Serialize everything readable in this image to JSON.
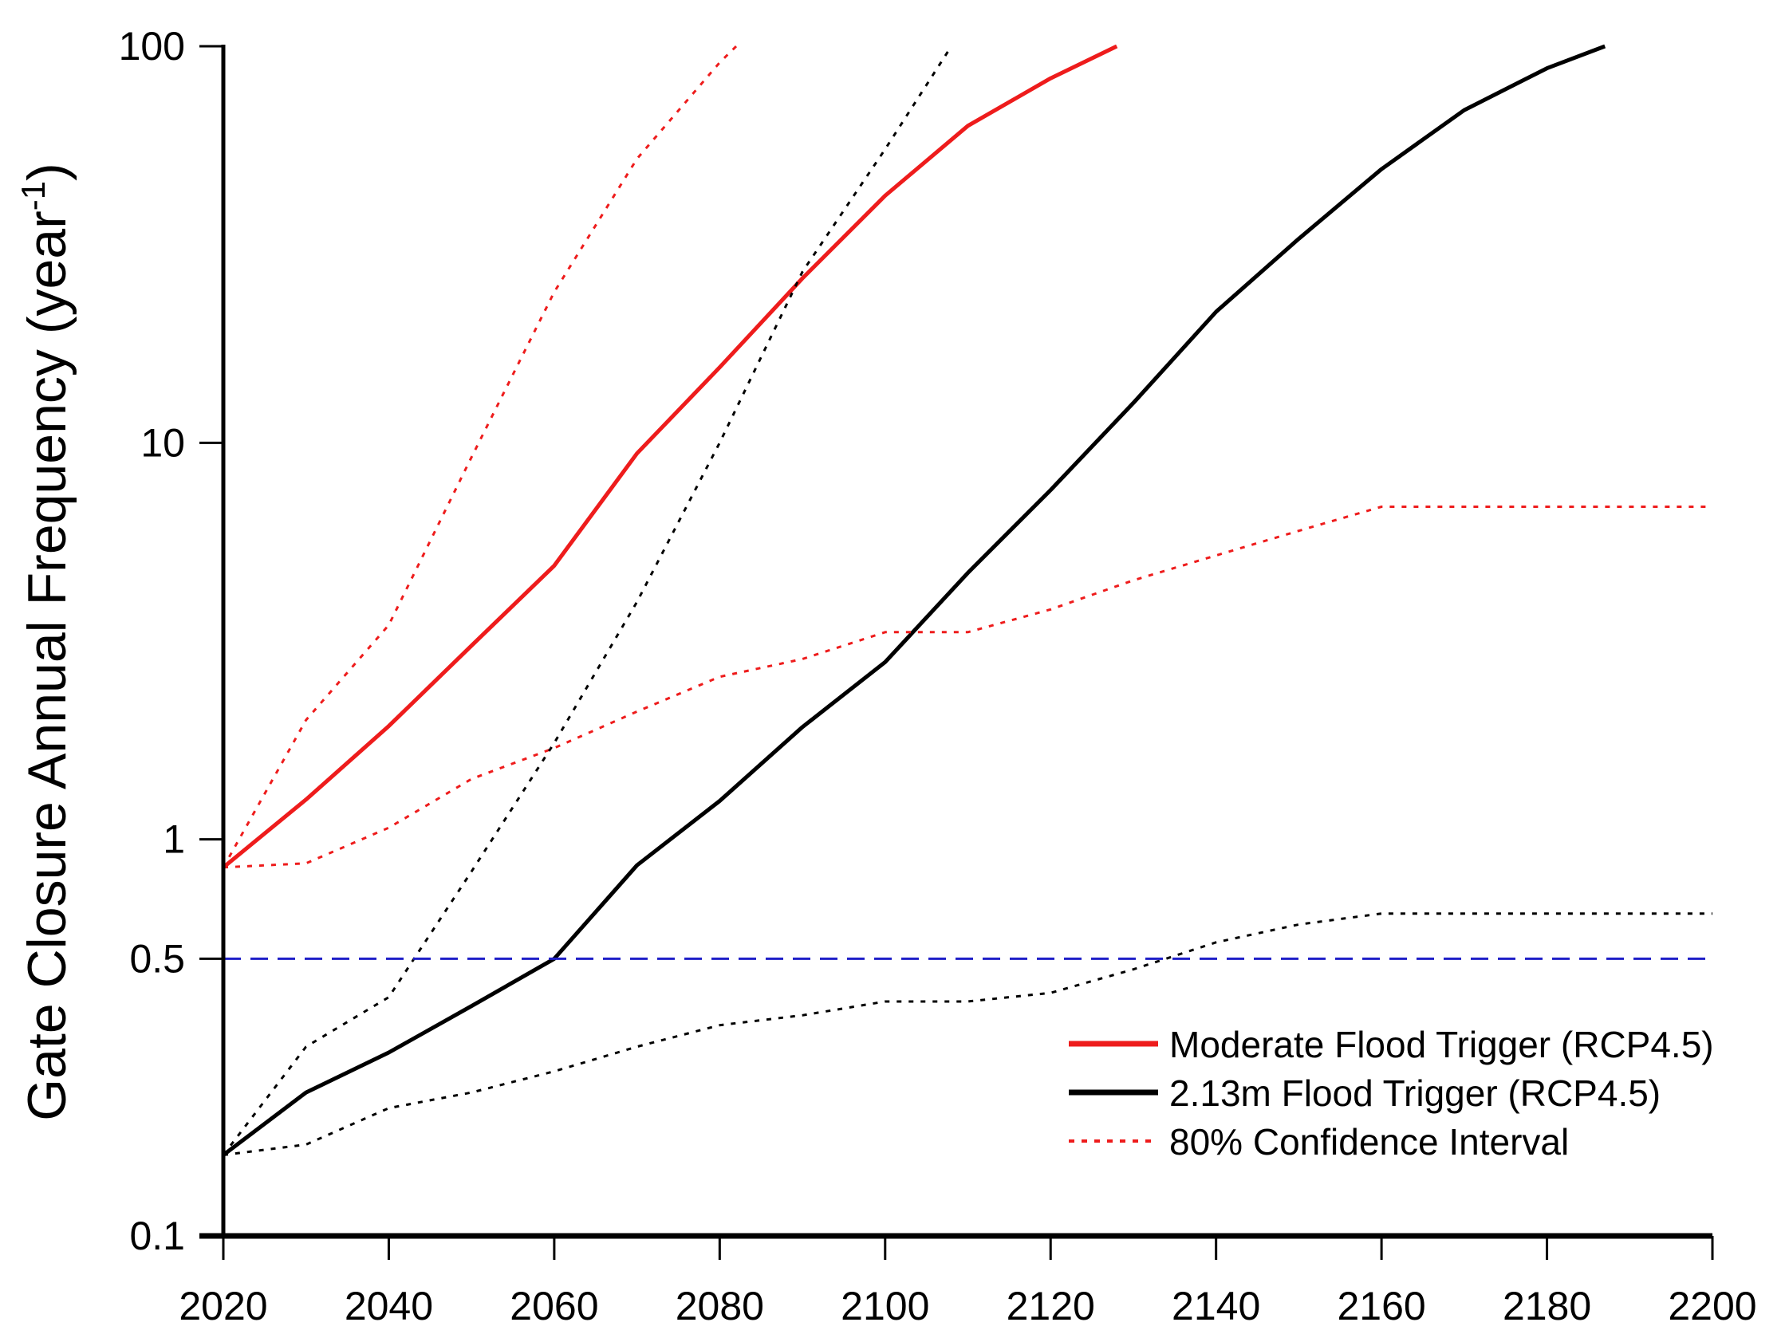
{
  "chart_data": {
    "type": "line",
    "title": "",
    "xlabel": "",
    "ylabel": "Gate Closure Annual Frequency (year",
    "ylabel_superscript": "-1",
    "ylabel_close": ")",
    "xscale": "linear",
    "yscale": "log",
    "xlim": [
      2020,
      2200
    ],
    "ylim": [
      0.1,
      100
    ],
    "grid": false,
    "legend_position": "bottom-right",
    "x_ticks": [
      "2020",
      "2040",
      "2060",
      "2080",
      "2100",
      "2120",
      "2140",
      "2160",
      "2180",
      "2200"
    ],
    "y_ticks": [
      {
        "value": 100,
        "label": "100"
      },
      {
        "value": 10,
        "label": "10"
      },
      {
        "value": 1,
        "label": "1"
      },
      {
        "value": 0.5,
        "label": "0.5"
      },
      {
        "value": 0.1,
        "label": "0.1"
      }
    ],
    "series": [
      {
        "name": "Moderate Flood Trigger (RCP4.5)",
        "color": "#ee1c1c",
        "style": "solid",
        "legend": true,
        "x": [
          2020,
          2030,
          2040,
          2050,
          2060,
          2070,
          2080,
          2090,
          2100,
          2110,
          2120,
          2128
        ],
        "y": [
          0.85,
          1.26,
          1.93,
          3.08,
          4.9,
          9.4,
          15.5,
          26,
          42,
          63,
          83,
          100
        ]
      },
      {
        "name": "2.13m Flood Trigger (RCP4.5)",
        "color": "#000000",
        "style": "solid",
        "legend": true,
        "x": [
          2020,
          2030,
          2040,
          2050,
          2060,
          2070,
          2080,
          2090,
          2100,
          2110,
          2120,
          2130,
          2140,
          2150,
          2160,
          2170,
          2180,
          2187
        ],
        "y": [
          0.16,
          0.23,
          0.29,
          0.38,
          0.5,
          0.86,
          1.25,
          1.92,
          2.8,
          4.7,
          7.6,
          12.6,
          21.4,
          32.7,
          49,
          69,
          88,
          100
        ]
      },
      {
        "name": "80% Confidence Interval",
        "color": "#ee1c1c",
        "style": "dotted",
        "legend": true,
        "x": [
          2020,
          2030,
          2040,
          2050,
          2060,
          2070,
          2080,
          2082
        ],
        "y": [
          0.85,
          2.0,
          3.47,
          9.2,
          24,
          52,
          91,
          100
        ]
      },
      {
        "name": "Moderate lower CI",
        "color": "#ee1c1c",
        "style": "dotted",
        "legend": false,
        "x": [
          2020,
          2030,
          2040,
          2050,
          2060,
          2070,
          2080,
          2090,
          2100,
          2110,
          2120,
          2130,
          2140,
          2150,
          2160,
          2200
        ],
        "y": [
          0.85,
          0.87,
          1.07,
          1.42,
          1.7,
          2.1,
          2.57,
          2.85,
          3.33,
          3.33,
          3.8,
          4.5,
          5.2,
          6.0,
          6.9,
          6.9
        ]
      },
      {
        "name": "2.13m upper CI",
        "color": "#000000",
        "style": "dotted",
        "legend": false,
        "x": [
          2020,
          2030,
          2040,
          2050,
          2060,
          2070,
          2080,
          2090,
          2100,
          2108
        ],
        "y": [
          0.16,
          0.3,
          0.4,
          0.83,
          1.75,
          3.97,
          10,
          27,
          55,
          100
        ]
      },
      {
        "name": "2.13m lower CI",
        "color": "#000000",
        "style": "dotted",
        "legend": false,
        "x": [
          2020,
          2030,
          2040,
          2050,
          2060,
          2070,
          2080,
          2090,
          2100,
          2110,
          2120,
          2130,
          2140,
          2150,
          2160,
          2200
        ],
        "y": [
          0.16,
          0.17,
          0.21,
          0.23,
          0.26,
          0.3,
          0.34,
          0.36,
          0.39,
          0.39,
          0.41,
          0.47,
          0.55,
          0.61,
          0.65,
          0.65
        ]
      },
      {
        "name": "0.5 threshold",
        "color": "#1f1fc8",
        "style": "dashed",
        "legend": false,
        "x": [
          2020,
          2200
        ],
        "y": [
          0.5,
          0.5
        ]
      }
    ]
  }
}
